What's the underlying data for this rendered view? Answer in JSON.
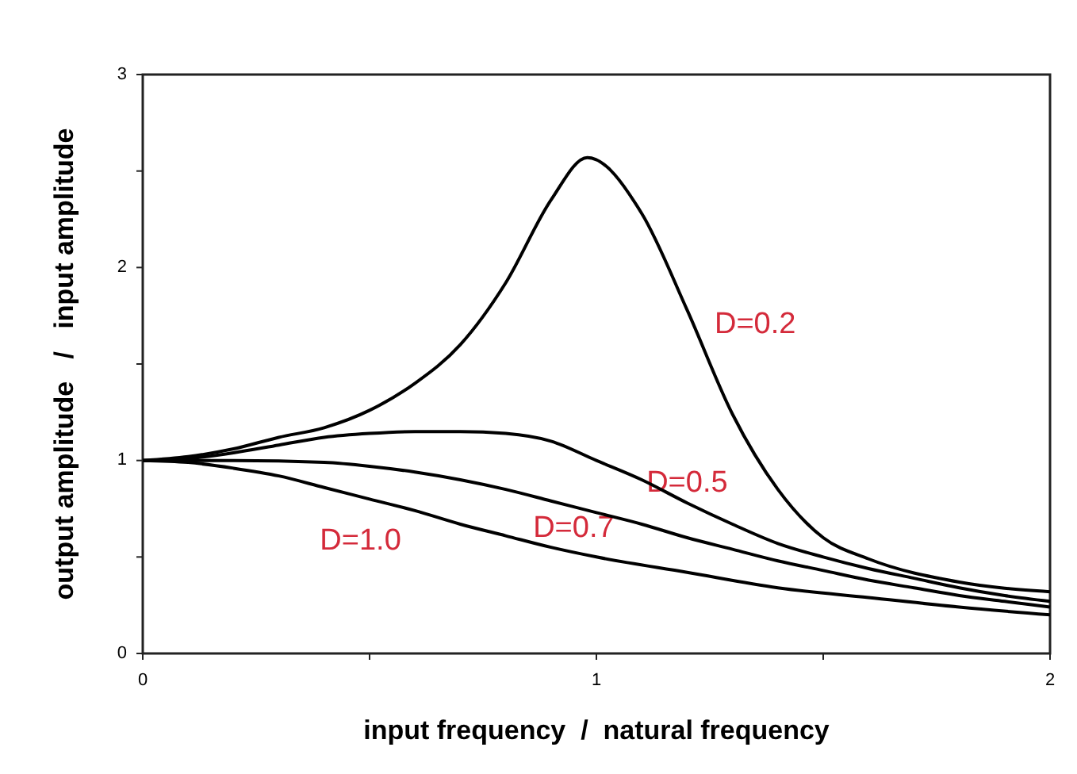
{
  "chart_data": {
    "type": "line",
    "xlabel": "input frequency  /  natural frequency",
    "ylabel": "output amplitude   /   input amplitude",
    "xlim": [
      0,
      2
    ],
    "ylim": [
      0,
      3
    ],
    "xticks": [
      0,
      {
        "value": 0.5,
        "label": null
      },
      1,
      {
        "value": 1.5,
        "label": null
      },
      2
    ],
    "yticks": [
      0,
      {
        "value": 0.5,
        "label": null
      },
      1,
      {
        "value": 1.5,
        "label": null
      },
      2,
      {
        "value": 2.5,
        "label": null
      },
      3
    ],
    "grid": false,
    "marker": "none",
    "line_style": "solid",
    "series": [
      {
        "name": "D=0.2",
        "color": "#000000",
        "x": [
          0,
          0.1,
          0.2,
          0.3,
          0.4,
          0.5,
          0.6,
          0.7,
          0.8,
          0.9,
          0.98,
          1.1,
          1.2,
          1.3,
          1.4,
          1.5,
          1.6,
          1.8,
          2.0
        ],
        "values": [
          1,
          1.02,
          1.06,
          1.12,
          1.17,
          1.26,
          1.4,
          1.6,
          1.92,
          2.35,
          2.57,
          2.28,
          1.78,
          1.24,
          0.85,
          0.6,
          0.49,
          0.37,
          0.32
        ]
      },
      {
        "name": "D=0.5",
        "color": "#000000",
        "x": [
          0,
          0.1,
          0.2,
          0.3,
          0.4,
          0.5,
          0.6,
          0.7,
          0.8,
          0.9,
          1.0,
          1.1,
          1.2,
          1.3,
          1.4,
          1.5,
          1.6,
          1.7,
          1.8,
          1.9,
          2.0
        ],
        "values": [
          1,
          1.01,
          1.04,
          1.08,
          1.12,
          1.14,
          1.15,
          1.15,
          1.14,
          1.1,
          1.0,
          0.9,
          0.78,
          0.67,
          0.57,
          0.5,
          0.44,
          0.39,
          0.34,
          0.3,
          0.27
        ]
      },
      {
        "name": "D=0.7",
        "color": "#000000",
        "x": [
          0,
          0.2,
          0.4,
          0.5,
          0.6,
          0.7,
          0.8,
          0.9,
          1.0,
          1.1,
          1.2,
          1.3,
          1.4,
          1.5,
          1.6,
          1.7,
          1.8,
          1.9,
          2.0
        ],
        "values": [
          1,
          1.0,
          0.99,
          0.97,
          0.94,
          0.9,
          0.85,
          0.79,
          0.73,
          0.67,
          0.6,
          0.54,
          0.48,
          0.43,
          0.38,
          0.34,
          0.3,
          0.27,
          0.24
        ]
      },
      {
        "name": "D=1.0",
        "color": "#000000",
        "x": [
          0,
          0.1,
          0.2,
          0.3,
          0.4,
          0.5,
          0.6,
          0.7,
          0.8,
          0.9,
          1.0,
          1.2,
          1.4,
          1.6,
          1.8,
          2.0
        ],
        "values": [
          1,
          0.99,
          0.96,
          0.92,
          0.86,
          0.8,
          0.74,
          0.67,
          0.61,
          0.55,
          0.5,
          0.42,
          0.34,
          0.29,
          0.24,
          0.2
        ]
      }
    ]
  }
}
